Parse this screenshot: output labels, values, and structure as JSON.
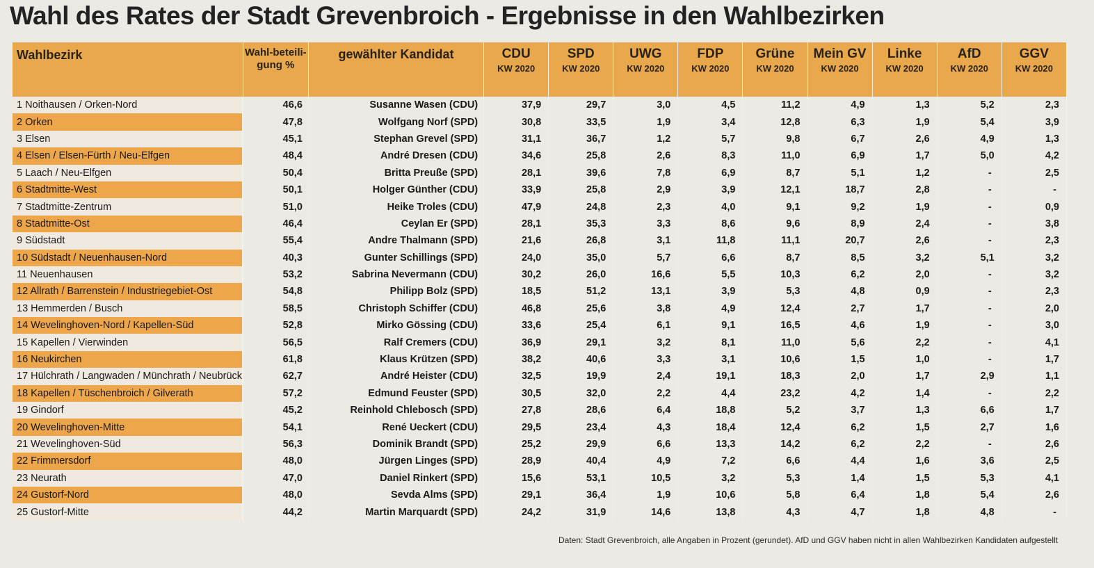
{
  "title": "Wahl des Rates der Stadt Grevenbroich - Ergebnisse in den Wahlbezirken",
  "header": {
    "district": "Wahlbezirk",
    "turnout": "Wahl-beteili-gung %",
    "candidate": "gewählter Kandidat",
    "sub": "KW 2020",
    "parties": [
      "CDU",
      "SPD",
      "UWG",
      "FDP",
      "Grüne",
      "Mein GV",
      "Linke",
      "AfD",
      "GGV"
    ]
  },
  "rows": [
    {
      "district": "1 Noithausen / Orken-Nord",
      "turnout": "46,6",
      "candidate": "Susanne Wasen (CDU)",
      "values": [
        "37,9",
        "29,7",
        "3,0",
        "4,5",
        "11,2",
        "4,9",
        "1,3",
        "5,2",
        "2,3"
      ]
    },
    {
      "district": "2 Orken",
      "turnout": "47,8",
      "candidate": "Wolfgang Norf (SPD)",
      "values": [
        "30,8",
        "33,5",
        "1,9",
        "3,4",
        "12,8",
        "6,3",
        "1,9",
        "5,4",
        "3,9"
      ]
    },
    {
      "district": "3 Elsen",
      "turnout": "45,1",
      "candidate": "Stephan Grevel (SPD)",
      "values": [
        "31,1",
        "36,7",
        "1,2",
        "5,7",
        "9,8",
        "6,7",
        "2,6",
        "4,9",
        "1,3"
      ]
    },
    {
      "district": "4 Elsen / Elsen-Fürth / Neu-Elfgen",
      "turnout": "48,4",
      "candidate": "André Dresen (CDU)",
      "values": [
        "34,6",
        "25,8",
        "2,6",
        "8,3",
        "11,0",
        "6,9",
        "1,7",
        "5,0",
        "4,2"
      ]
    },
    {
      "district": "5 Laach / Neu-Elfgen",
      "turnout": "50,4",
      "candidate": "Britta Preuße (SPD)",
      "values": [
        "28,1",
        "39,6",
        "7,8",
        "6,9",
        "8,7",
        "5,1",
        "1,2",
        "-",
        "2,5"
      ]
    },
    {
      "district": "6 Stadtmitte-West",
      "turnout": "50,1",
      "candidate": "Holger Günther (CDU)",
      "values": [
        "33,9",
        "25,8",
        "2,9",
        "3,9",
        "12,1",
        "18,7",
        "2,8",
        "-",
        "-"
      ]
    },
    {
      "district": "7 Stadtmitte-Zentrum",
      "turnout": "51,0",
      "candidate": "Heike Troles (CDU)",
      "values": [
        "47,9",
        "24,8",
        "2,3",
        "4,0",
        "9,1",
        "9,2",
        "1,9",
        "-",
        "0,9"
      ]
    },
    {
      "district": "8 Stadtmitte-Ost",
      "turnout": "46,4",
      "candidate": "Ceylan Er (SPD)",
      "values": [
        "28,1",
        "35,3",
        "3,3",
        "8,6",
        "9,6",
        "8,9",
        "2,4",
        "-",
        "3,8"
      ]
    },
    {
      "district": "9 Südstadt",
      "turnout": "55,4",
      "candidate": "Andre Thalmann (SPD)",
      "values": [
        "21,6",
        "26,8",
        "3,1",
        "11,8",
        "11,1",
        "20,7",
        "2,6",
        "-",
        "2,3"
      ]
    },
    {
      "district": "10 Südstadt / Neuenhausen-Nord",
      "turnout": "40,3",
      "candidate": "Gunter Schillings (SPD)",
      "values": [
        "24,0",
        "35,0",
        "5,7",
        "6,6",
        "8,7",
        "8,5",
        "3,2",
        "5,1",
        "3,2"
      ]
    },
    {
      "district": "11 Neuenhausen",
      "turnout": "53,2",
      "candidate": "Sabrina Nevermann (CDU)",
      "values": [
        "30,2",
        "26,0",
        "16,6",
        "5,5",
        "10,3",
        "6,2",
        "2,0",
        "-",
        "3,2"
      ]
    },
    {
      "district": "12 Allrath / Barrenstein / Industriegebiet-Ost",
      "turnout": "54,8",
      "candidate": "Philipp Bolz (SPD)",
      "values": [
        "18,5",
        "51,2",
        "13,1",
        "3,9",
        "5,3",
        "4,8",
        "0,9",
        "-",
        "2,3"
      ]
    },
    {
      "district": "13 Hemmerden / Busch",
      "turnout": "58,5",
      "candidate": "Christoph Schiffer (CDU)",
      "values": [
        "46,8",
        "25,6",
        "3,8",
        "4,9",
        "12,4",
        "2,7",
        "1,7",
        "-",
        "2,0"
      ]
    },
    {
      "district": "14 Wevelinghoven-Nord / Kapellen-Süd",
      "turnout": "52,8",
      "candidate": "Mirko Gössing (CDU)",
      "values": [
        "33,6",
        "25,4",
        "6,1",
        "9,1",
        "16,5",
        "4,6",
        "1,9",
        "-",
        "3,0"
      ]
    },
    {
      "district": "15 Kapellen / Vierwinden",
      "turnout": "56,5",
      "candidate": "Ralf Cremers (CDU)",
      "values": [
        "36,9",
        "29,1",
        "3,2",
        "8,1",
        "11,0",
        "5,6",
        "2,2",
        "-",
        "4,1"
      ]
    },
    {
      "district": "16 Neukirchen",
      "turnout": "61,8",
      "candidate": "Klaus Krützen (SPD)",
      "values": [
        "38,2",
        "40,6",
        "3,3",
        "3,1",
        "10,6",
        "1,5",
        "1,0",
        "-",
        "1,7"
      ]
    },
    {
      "district": "17 Hülchrath / Langwaden / Münchrath / Neubrück",
      "turnout": "62,7",
      "candidate": "André Heister (CDU)",
      "values": [
        "32,5",
        "19,9",
        "2,4",
        "19,1",
        "18,3",
        "2,0",
        "1,7",
        "2,9",
        "1,1"
      ]
    },
    {
      "district": "18 Kapellen / Tüschenbroich / Gilverath",
      "turnout": "57,2",
      "candidate": "Edmund Feuster (SPD)",
      "values": [
        "30,5",
        "32,0",
        "2,2",
        "4,4",
        "23,2",
        "4,2",
        "1,4",
        "-",
        "2,2"
      ]
    },
    {
      "district": "19 Gindorf",
      "turnout": "45,2",
      "candidate": "Reinhold Chlebosch (SPD)",
      "values": [
        "27,8",
        "28,6",
        "6,4",
        "18,8",
        "5,2",
        "3,7",
        "1,3",
        "6,6",
        "1,7"
      ]
    },
    {
      "district": "20 Wevelinghoven-Mitte",
      "turnout": "54,1",
      "candidate": "René Ueckert (CDU)",
      "values": [
        "29,5",
        "23,4",
        "4,3",
        "18,4",
        "12,4",
        "6,2",
        "1,5",
        "2,7",
        "1,6"
      ]
    },
    {
      "district": "21 Wevelinghoven-Süd",
      "turnout": "56,3",
      "candidate": "Dominik Brandt (SPD)",
      "values": [
        "25,2",
        "29,9",
        "6,6",
        "13,3",
        "14,2",
        "6,2",
        "2,2",
        "-",
        "2,6"
      ]
    },
    {
      "district": "22 Frimmersdorf",
      "turnout": "48,0",
      "candidate": "Jürgen Linges (SPD)",
      "values": [
        "28,9",
        "40,4",
        "4,9",
        "7,2",
        "6,6",
        "4,4",
        "1,6",
        "3,6",
        "2,5"
      ]
    },
    {
      "district": "23 Neurath",
      "turnout": "47,0",
      "candidate": "Daniel Rinkert (SPD)",
      "values": [
        "15,6",
        "53,1",
        "10,5",
        "3,2",
        "5,3",
        "1,4",
        "1,5",
        "5,3",
        "4,1"
      ]
    },
    {
      "district": "24 Gustorf-Nord",
      "turnout": "48,0",
      "candidate": "Sevda Alms (SPD)",
      "values": [
        "29,1",
        "36,4",
        "1,9",
        "10,6",
        "5,8",
        "6,4",
        "1,8",
        "5,4",
        "2,6"
      ]
    },
    {
      "district": "25 Gustorf-Mitte",
      "turnout": "44,2",
      "candidate": "Martin Marquardt (SPD)",
      "values": [
        "24,2",
        "31,9",
        "14,6",
        "13,8",
        "4,3",
        "4,7",
        "1,8",
        "4,8",
        "-"
      ]
    }
  ],
  "source": "Daten: Stadt Grevenbroich, alle Angaben in Prozent (gerundet). AfD und GGV haben nicht in allen Wahlbezirken Kandidaten aufgestellt",
  "colors": {
    "header": "#e9a84c",
    "stripe": "#eda64a",
    "background": "#eceae4"
  }
}
